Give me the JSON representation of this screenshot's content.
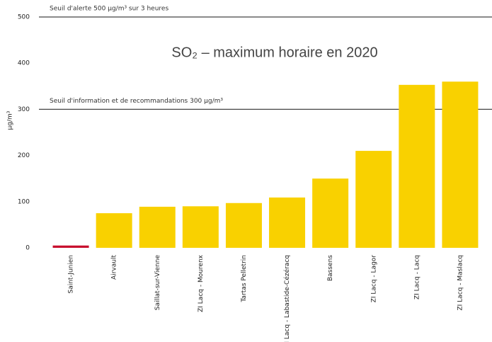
{
  "chart_data": {
    "type": "bar",
    "title": "SO₂ – maximum horaire en 2020",
    "y_label": "µg/m³",
    "categories": [
      "Saint-Junien",
      "Airvault",
      "Saillat-sur-Vienne",
      "ZI Lacq - Mourenx",
      "Tartas Pelletrin",
      "ZI Lacq - Labastide-Cézéracq",
      "Bassens",
      "ZI Lacq - Lagor",
      "ZI Lacq - Lacq",
      "ZI Lacq - Maslacq"
    ],
    "values": [
      5,
      75,
      89,
      90,
      97,
      109,
      150,
      210,
      353,
      360
    ],
    "colors": [
      "#c8102e",
      "#f9d100",
      "#f9d100",
      "#f9d100",
      "#f9d100",
      "#f9d100",
      "#f9d100",
      "#f9d100",
      "#f9d100",
      "#f9d100"
    ],
    "ylim": [
      0,
      500
    ],
    "yticks": [
      0,
      100,
      200,
      300,
      400,
      500
    ],
    "thresholds": [
      {
        "value": 500,
        "label": "Seuil d'alerte 500 µg/m³ sur 3 heures"
      },
      {
        "value": 300,
        "label": "Seuil d'information et de recommandations 300 µg/m³"
      }
    ]
  }
}
